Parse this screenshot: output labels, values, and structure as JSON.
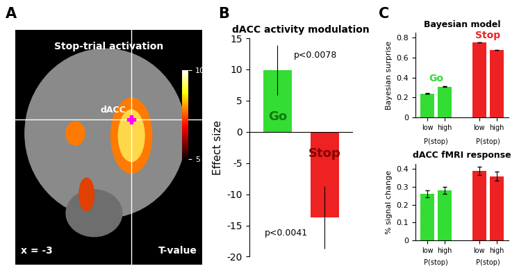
{
  "chart_data": [
    {
      "type": "brain_map",
      "panel": "A",
      "title": "Stop-trial activation",
      "annotations": [
        "dACC",
        "x = -3"
      ],
      "colorbar_label": "T-value",
      "colorbar_lim": [
        5,
        10
      ],
      "colorbar_ticks": [
        5,
        10
      ]
    },
    {
      "type": "bar",
      "panel": "B",
      "title": "dACC activity modulation",
      "y_label": "Effect size",
      "categories": [
        "Go",
        "Stop"
      ],
      "values": [
        9.9,
        -13.7
      ],
      "errors": [
        4.0,
        5.0
      ],
      "colors": [
        "#33dd33",
        "#ee2222"
      ],
      "annotations": [
        "p<0.0078",
        "p<0.0041"
      ],
      "ylim": [
        -20,
        15
      ],
      "yticks": [
        -20,
        -15,
        -10,
        -5,
        0,
        5,
        10,
        15
      ],
      "tick_labels": "y"
    },
    {
      "type": "grouped_bar",
      "panel": "C",
      "title": "Bayesian model",
      "y_label": "Bayesian surprise",
      "categories": [
        "low",
        "high"
      ],
      "group_label": "P(stop)",
      "groups": [
        {
          "name": "Go",
          "color": "#33dd33",
          "values": [
            0.24,
            0.31
          ],
          "errors": [
            0.005,
            0.005
          ]
        },
        {
          "name": "Stop",
          "color": "#ee2222",
          "values": [
            0.75,
            0.68
          ],
          "errors": [
            0,
            0
          ]
        }
      ],
      "ylim": [
        0,
        0.85
      ],
      "yticks": [
        0,
        0.2,
        0.4,
        0.6,
        0.8
      ]
    },
    {
      "type": "grouped_bar",
      "title": "dACC fMRI response",
      "y_label": "% signal change",
      "categories": [
        "low",
        "high"
      ],
      "group_label": "P(stop)",
      "groups": [
        {
          "color": "#33dd33",
          "values": [
            0.26,
            0.28
          ],
          "errors": [
            0.02,
            0.02
          ]
        },
        {
          "color": "#ee2222",
          "values": [
            0.39,
            0.36
          ],
          "errors": [
            0.025,
            0.025
          ]
        }
      ],
      "ylim": [
        0,
        0.43
      ],
      "yticks": [
        0,
        0.1,
        0.2,
        0.3,
        0.4
      ]
    }
  ]
}
